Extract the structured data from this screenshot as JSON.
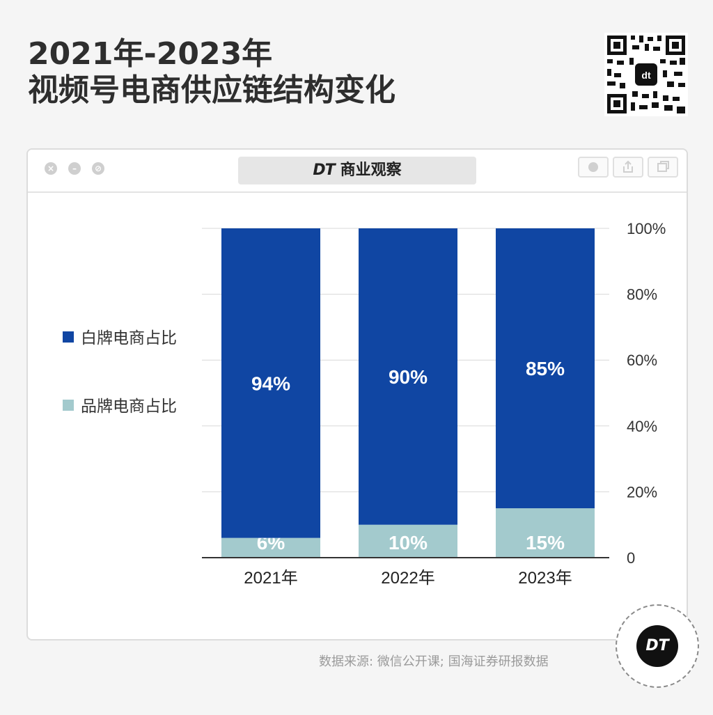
{
  "title": {
    "line1": "2021年-2023年",
    "line2": "视频号电商供应链结构变化"
  },
  "window": {
    "brand_mark": "DT",
    "brand_name": "商业观察"
  },
  "source": "数据来源: 微信公开课; 国海证券研报数据",
  "badge": "DT",
  "colors": {
    "white_label": "#1046a3",
    "brand": "#a3cacd",
    "grid": "#d8d8d8",
    "axis": "#333333",
    "text": "#333333"
  },
  "chart_data": {
    "type": "bar",
    "stacked": true,
    "categories": [
      "2021年",
      "2022年",
      "2023年"
    ],
    "series": [
      {
        "name": "白牌电商占比",
        "values": [
          94,
          90,
          85
        ],
        "labels": [
          "94%",
          "90%",
          "85%"
        ]
      },
      {
        "name": "品牌电商占比",
        "values": [
          6,
          10,
          15
        ],
        "labels": [
          "6%",
          "10%",
          "15%"
        ]
      }
    ],
    "y_ticks": [
      "0",
      "20%",
      "40%",
      "60%",
      "80%",
      "100%"
    ],
    "ylim": [
      0,
      100
    ],
    "y_axis_side": "right",
    "grid": true,
    "legend_position": "left"
  }
}
